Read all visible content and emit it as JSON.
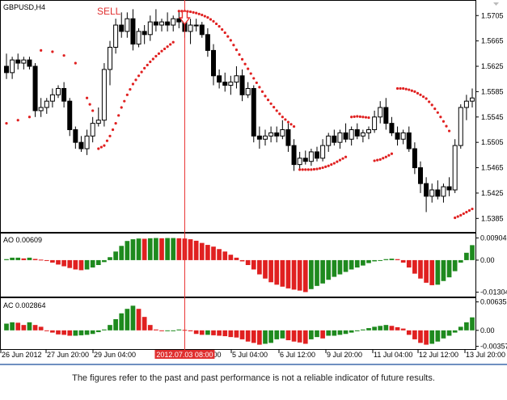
{
  "main_panel": {
    "symbol_label": "GBPUSD,H4",
    "signal_label": "SELL",
    "price_ticks": [
      "1.5705",
      "1.5665",
      "1.5625",
      "1.5585",
      "1.5545",
      "1.5505",
      "1.5465",
      "1.5425",
      "1.5385"
    ]
  },
  "ao_panel": {
    "label": "AO 0.00609",
    "ticks": [
      "0.00904",
      "0.00",
      "-0.01304"
    ]
  },
  "ac_panel": {
    "label": "AC 0.002864",
    "ticks": [
      "0.006351",
      "0.00",
      "-0.00357"
    ]
  },
  "time_axis": {
    "labels": [
      "26 Jun 2012",
      "27 Jun 20:00",
      "29 Jun 04:00",
      "20:00",
      "5 Jul 04:00",
      "6 Jul 12:00",
      "9 Jul 20:00",
      "11 Jul 04:00",
      "12 Jul 12:00",
      "13 Jul 20:00"
    ],
    "highlight_label": "2012.07.03 08:00"
  },
  "disclaimer": "The figures refer to the past and past performance is not a reliable indicator of future results.",
  "colors": {
    "up_bar": "#1e8a1e",
    "down_bar": "#e02020",
    "sar_dot": "#e02020",
    "signal_line": "#e83030",
    "candle": "#000000"
  },
  "chart_data": [
    {
      "type": "candlestick",
      "title": "GBPUSD,H4",
      "y_ticks": [
        1.5705,
        1.5665,
        1.5625,
        1.5585,
        1.5545,
        1.5505,
        1.5465,
        1.5425,
        1.5385
      ],
      "ylim": [
        1.5365,
        1.5727
      ],
      "candles": [
        {
          "o": 1.5625,
          "h": 1.5645,
          "l": 1.5605,
          "c": 1.5615
        },
        {
          "o": 1.5615,
          "h": 1.564,
          "l": 1.5605,
          "c": 1.5635
        },
        {
          "o": 1.5635,
          "h": 1.5645,
          "l": 1.562,
          "c": 1.563
        },
        {
          "o": 1.563,
          "h": 1.564,
          "l": 1.562,
          "c": 1.5635
        },
        {
          "o": 1.5635,
          "h": 1.564,
          "l": 1.562,
          "c": 1.5625
        },
        {
          "o": 1.5625,
          "h": 1.563,
          "l": 1.5545,
          "c": 1.5555
        },
        {
          "o": 1.5555,
          "h": 1.5575,
          "l": 1.5545,
          "c": 1.556
        },
        {
          "o": 1.556,
          "h": 1.5575,
          "l": 1.555,
          "c": 1.557
        },
        {
          "o": 1.557,
          "h": 1.559,
          "l": 1.556,
          "c": 1.558
        },
        {
          "o": 1.558,
          "h": 1.5595,
          "l": 1.5575,
          "c": 1.559
        },
        {
          "o": 1.559,
          "h": 1.56,
          "l": 1.556,
          "c": 1.557
        },
        {
          "o": 1.557,
          "h": 1.5575,
          "l": 1.5515,
          "c": 1.5525
        },
        {
          "o": 1.5525,
          "h": 1.553,
          "l": 1.5495,
          "c": 1.5505
        },
        {
          "o": 1.5505,
          "h": 1.5515,
          "l": 1.549,
          "c": 1.5495
        },
        {
          "o": 1.5495,
          "h": 1.5525,
          "l": 1.5485,
          "c": 1.5515
        },
        {
          "o": 1.5515,
          "h": 1.5545,
          "l": 1.5505,
          "c": 1.5535
        },
        {
          "o": 1.5535,
          "h": 1.556,
          "l": 1.553,
          "c": 1.554
        },
        {
          "o": 1.554,
          "h": 1.563,
          "l": 1.553,
          "c": 1.562
        },
        {
          "o": 1.562,
          "h": 1.5665,
          "l": 1.5595,
          "c": 1.5655
        },
        {
          "o": 1.5655,
          "h": 1.57,
          "l": 1.5645,
          "c": 1.569
        },
        {
          "o": 1.569,
          "h": 1.571,
          "l": 1.567,
          "c": 1.568
        },
        {
          "o": 1.568,
          "h": 1.571,
          "l": 1.567,
          "c": 1.57
        },
        {
          "o": 1.57,
          "h": 1.5715,
          "l": 1.565,
          "c": 1.566
        },
        {
          "o": 1.566,
          "h": 1.5685,
          "l": 1.5655,
          "c": 1.568
        },
        {
          "o": 1.568,
          "h": 1.569,
          "l": 1.566,
          "c": 1.5675
        },
        {
          "o": 1.5675,
          "h": 1.5705,
          "l": 1.5665,
          "c": 1.5695
        },
        {
          "o": 1.5695,
          "h": 1.5715,
          "l": 1.568,
          "c": 1.569
        },
        {
          "o": 1.569,
          "h": 1.57,
          "l": 1.568,
          "c": 1.5695
        },
        {
          "o": 1.5695,
          "h": 1.571,
          "l": 1.568,
          "c": 1.569
        },
        {
          "o": 1.569,
          "h": 1.5705,
          "l": 1.568,
          "c": 1.57
        },
        {
          "o": 1.57,
          "h": 1.5712,
          "l": 1.5685,
          "c": 1.5695
        },
        {
          "o": 1.5695,
          "h": 1.57,
          "l": 1.567,
          "c": 1.568
        },
        {
          "o": 1.568,
          "h": 1.57,
          "l": 1.566,
          "c": 1.569
        },
        {
          "o": 1.569,
          "h": 1.57,
          "l": 1.568,
          "c": 1.569
        },
        {
          "o": 1.569,
          "h": 1.5695,
          "l": 1.567,
          "c": 1.5675
        },
        {
          "o": 1.5675,
          "h": 1.5685,
          "l": 1.564,
          "c": 1.565
        },
        {
          "o": 1.565,
          "h": 1.566,
          "l": 1.5595,
          "c": 1.561
        },
        {
          "o": 1.561,
          "h": 1.562,
          "l": 1.559,
          "c": 1.56
        },
        {
          "o": 1.56,
          "h": 1.5615,
          "l": 1.5585,
          "c": 1.5595
        },
        {
          "o": 1.5595,
          "h": 1.561,
          "l": 1.558,
          "c": 1.56
        },
        {
          "o": 1.56,
          "h": 1.5625,
          "l": 1.559,
          "c": 1.561
        },
        {
          "o": 1.561,
          "h": 1.562,
          "l": 1.557,
          "c": 1.558
        },
        {
          "o": 1.558,
          "h": 1.56,
          "l": 1.5575,
          "c": 1.559
        },
        {
          "o": 1.559,
          "h": 1.5595,
          "l": 1.5505,
          "c": 1.5515
        },
        {
          "o": 1.5515,
          "h": 1.553,
          "l": 1.5495,
          "c": 1.551
        },
        {
          "o": 1.551,
          "h": 1.5525,
          "l": 1.55,
          "c": 1.5515
        },
        {
          "o": 1.5515,
          "h": 1.553,
          "l": 1.5505,
          "c": 1.552
        },
        {
          "o": 1.552,
          "h": 1.553,
          "l": 1.5505,
          "c": 1.5515
        },
        {
          "o": 1.5515,
          "h": 1.554,
          "l": 1.551,
          "c": 1.5525
        },
        {
          "o": 1.5525,
          "h": 1.5535,
          "l": 1.549,
          "c": 1.55
        },
        {
          "o": 1.55,
          "h": 1.551,
          "l": 1.546,
          "c": 1.547
        },
        {
          "o": 1.547,
          "h": 1.549,
          "l": 1.5462,
          "c": 1.548
        },
        {
          "o": 1.548,
          "h": 1.5492,
          "l": 1.547,
          "c": 1.5475
        },
        {
          "o": 1.5475,
          "h": 1.5495,
          "l": 1.5468,
          "c": 1.549
        },
        {
          "o": 1.549,
          "h": 1.5498,
          "l": 1.5475,
          "c": 1.548
        },
        {
          "o": 1.548,
          "h": 1.551,
          "l": 1.5475,
          "c": 1.55
        },
        {
          "o": 1.55,
          "h": 1.552,
          "l": 1.549,
          "c": 1.5515
        },
        {
          "o": 1.5515,
          "h": 1.5525,
          "l": 1.55,
          "c": 1.5505
        },
        {
          "o": 1.5505,
          "h": 1.5525,
          "l": 1.5495,
          "c": 1.552
        },
        {
          "o": 1.552,
          "h": 1.5535,
          "l": 1.5505,
          "c": 1.551
        },
        {
          "o": 1.551,
          "h": 1.553,
          "l": 1.55,
          "c": 1.5525
        },
        {
          "o": 1.5525,
          "h": 1.5535,
          "l": 1.551,
          "c": 1.5515
        },
        {
          "o": 1.5515,
          "h": 1.5525,
          "l": 1.5505,
          "c": 1.552
        },
        {
          "o": 1.552,
          "h": 1.553,
          "l": 1.551,
          "c": 1.5525
        },
        {
          "o": 1.5525,
          "h": 1.5555,
          "l": 1.552,
          "c": 1.5545
        },
        {
          "o": 1.5545,
          "h": 1.557,
          "l": 1.5535,
          "c": 1.556
        },
        {
          "o": 1.556,
          "h": 1.5575,
          "l": 1.5525,
          "c": 1.5535
        },
        {
          "o": 1.5535,
          "h": 1.5545,
          "l": 1.5515,
          "c": 1.552
        },
        {
          "o": 1.552,
          "h": 1.553,
          "l": 1.55,
          "c": 1.551
        },
        {
          "o": 1.551,
          "h": 1.5525,
          "l": 1.5502,
          "c": 1.552
        },
        {
          "o": 1.552,
          "h": 1.553,
          "l": 1.549,
          "c": 1.5495
        },
        {
          "o": 1.5495,
          "h": 1.5505,
          "l": 1.5455,
          "c": 1.5465
        },
        {
          "o": 1.5465,
          "h": 1.5475,
          "l": 1.5425,
          "c": 1.544
        },
        {
          "o": 1.544,
          "h": 1.545,
          "l": 1.5395,
          "c": 1.542
        },
        {
          "o": 1.542,
          "h": 1.544,
          "l": 1.541,
          "c": 1.543
        },
        {
          "o": 1.543,
          "h": 1.5445,
          "l": 1.5415,
          "c": 1.542
        },
        {
          "o": 1.542,
          "h": 1.544,
          "l": 1.541,
          "c": 1.5435
        },
        {
          "o": 1.5435,
          "h": 1.545,
          "l": 1.542,
          "c": 1.543
        },
        {
          "o": 1.543,
          "h": 1.551,
          "l": 1.5425,
          "c": 1.55
        },
        {
          "o": 1.55,
          "h": 1.5565,
          "l": 1.5495,
          "c": 1.556
        },
        {
          "o": 1.556,
          "h": 1.558,
          "l": 1.554,
          "c": 1.557
        },
        {
          "o": 1.557,
          "h": 1.559,
          "l": 1.556,
          "c": 1.5575
        }
      ],
      "sar": [
        {
          "i": 0,
          "v": 1.5535
        },
        {
          "i": 2,
          "v": 1.554
        },
        {
          "i": 4,
          "v": 1.5545
        },
        {
          "i": 6,
          "v": 1.565
        },
        {
          "i": 8,
          "v": 1.5648
        },
        {
          "i": 10,
          "v": 1.5642
        },
        {
          "i": 12,
          "v": 1.563
        },
        {
          "i": 14,
          "v": 1.5575
        },
        {
          "i": 15,
          "v": 1.5555
        },
        {
          "i": 16,
          "v": 1.5495
        },
        {
          "i": 17,
          "v": 1.55
        },
        {
          "i": 18,
          "v": 1.5515
        },
        {
          "i": 19,
          "v": 1.5535
        },
        {
          "i": 20,
          "v": 1.556
        },
        {
          "i": 21,
          "v": 1.558
        },
        {
          "i": 22,
          "v": 1.5597
        },
        {
          "i": 23,
          "v": 1.561
        },
        {
          "i": 24,
          "v": 1.5622
        },
        {
          "i": 25,
          "v": 1.5632
        },
        {
          "i": 26,
          "v": 1.5641
        },
        {
          "i": 27,
          "v": 1.5649
        },
        {
          "i": 28,
          "v": 1.5656
        },
        {
          "i": 29,
          "v": 1.5663
        },
        {
          "i": 30,
          "v": 1.5712
        },
        {
          "i": 31,
          "v": 1.5712
        },
        {
          "i": 32,
          "v": 1.5711
        },
        {
          "i": 33,
          "v": 1.5709
        },
        {
          "i": 34,
          "v": 1.5706
        },
        {
          "i": 35,
          "v": 1.5702
        },
        {
          "i": 36,
          "v": 1.5696
        },
        {
          "i": 37,
          "v": 1.5688
        },
        {
          "i": 38,
          "v": 1.5678
        },
        {
          "i": 39,
          "v": 1.5666
        },
        {
          "i": 40,
          "v": 1.5651
        },
        {
          "i": 41,
          "v": 1.5636
        },
        {
          "i": 42,
          "v": 1.5621
        },
        {
          "i": 43,
          "v": 1.5606
        },
        {
          "i": 44,
          "v": 1.5592
        },
        {
          "i": 45,
          "v": 1.5578
        },
        {
          "i": 46,
          "v": 1.5566
        },
        {
          "i": 47,
          "v": 1.5555
        },
        {
          "i": 48,
          "v": 1.5545
        },
        {
          "i": 49,
          "v": 1.5537
        },
        {
          "i": 50,
          "v": 1.553
        },
        {
          "i": 51,
          "v": 1.5462
        },
        {
          "i": 52,
          "v": 1.5462
        },
        {
          "i": 53,
          "v": 1.5462
        },
        {
          "i": 54,
          "v": 1.5463
        },
        {
          "i": 55,
          "v": 1.5465
        },
        {
          "i": 56,
          "v": 1.5468
        },
        {
          "i": 57,
          "v": 1.5472
        },
        {
          "i": 58,
          "v": 1.5477
        },
        {
          "i": 59,
          "v": 1.5482
        },
        {
          "i": 60,
          "v": 1.5545
        },
        {
          "i": 61,
          "v": 1.5546
        },
        {
          "i": 62,
          "v": 1.5545
        },
        {
          "i": 63,
          "v": 1.5544
        },
        {
          "i": 64,
          "v": 1.5476
        },
        {
          "i": 65,
          "v": 1.5478
        },
        {
          "i": 66,
          "v": 1.5482
        },
        {
          "i": 67,
          "v": 1.5487
        },
        {
          "i": 68,
          "v": 1.559
        },
        {
          "i": 69,
          "v": 1.559
        },
        {
          "i": 70,
          "v": 1.5588
        },
        {
          "i": 71,
          "v": 1.5585
        },
        {
          "i": 72,
          "v": 1.558
        },
        {
          "i": 73,
          "v": 1.5574
        },
        {
          "i": 74,
          "v": 1.5564
        },
        {
          "i": 75,
          "v": 1.5552
        },
        {
          "i": 76,
          "v": 1.5538
        },
        {
          "i": 77,
          "v": 1.5523
        },
        {
          "i": 78,
          "v": 1.5386
        },
        {
          "i": 79,
          "v": 1.539
        },
        {
          "i": 80,
          "v": 1.5395
        },
        {
          "i": 81,
          "v": 1.54
        }
      ],
      "signal_index": 31
    },
    {
      "type": "bar",
      "title": "AO 0.00609",
      "y_ticks": [
        0.00904,
        0.0,
        -0.01304
      ],
      "ylim": [
        -0.0145,
        0.0105
      ],
      "values": [
        0.0004,
        0.001,
        0.001,
        0.0007,
        0.001,
        0.0005,
        0.0002,
        -0.0003,
        -0.001,
        -0.0018,
        -0.0025,
        -0.0032,
        -0.0038,
        -0.0041,
        -0.0038,
        -0.003,
        -0.002,
        -0.0008,
        0.0012,
        0.0035,
        0.0058,
        0.0078,
        0.0085,
        0.0088,
        0.0087,
        0.0089,
        0.009,
        0.0089,
        0.009,
        0.009,
        0.0089,
        0.0088,
        0.0085,
        0.0079,
        0.007,
        0.0062,
        0.0055,
        0.0045,
        0.0035,
        0.0022,
        0.001,
        -0.0005,
        -0.002,
        -0.0038,
        -0.0058,
        -0.0075,
        -0.009,
        -0.01,
        -0.0108,
        -0.0115,
        -0.012,
        -0.0124,
        -0.013,
        -0.0118,
        -0.0105,
        -0.0095,
        -0.008,
        -0.0068,
        -0.0058,
        -0.0048,
        -0.0038,
        -0.003,
        -0.0022,
        -0.0012,
        -0.0005,
        -0.0002,
        0.0004,
        0.0006,
        0.0004,
        -0.001,
        -0.003,
        -0.0055,
        -0.0075,
        -0.0092,
        -0.0102,
        -0.01,
        -0.0085,
        -0.007,
        -0.0045,
        -0.001,
        0.003,
        0.0061
      ]
    },
    {
      "type": "bar",
      "title": "AC 0.002864",
      "y_ticks": [
        0.006351,
        0.0,
        -0.00357
      ],
      "ylim": [
        -0.004,
        0.007
      ],
      "values": [
        0.0015,
        0.0018,
        0.0017,
        0.0012,
        0.0018,
        0.0012,
        0.0008,
        0.0,
        -0.0005,
        -0.0009,
        -0.001,
        -0.0012,
        -0.0012,
        -0.0011,
        -0.001,
        -0.0008,
        -0.0004,
        0.0002,
        0.0012,
        0.0025,
        0.0038,
        0.0048,
        0.0055,
        0.0048,
        0.003,
        0.0012,
        0.0002,
        0.0,
        0.0,
        0.0,
        0.0002,
        0.0001,
        -0.0002,
        -0.0008,
        -0.001,
        -0.001,
        -0.0011,
        -0.0012,
        -0.0013,
        -0.0015,
        -0.0016,
        -0.002,
        -0.0025,
        -0.0028,
        -0.0032,
        -0.003,
        -0.0028,
        -0.002,
        -0.0018,
        -0.0022,
        -0.0025,
        -0.0027,
        -0.003,
        -0.002,
        -0.0015,
        -0.0018,
        -0.0012,
        -0.0012,
        -0.001,
        -0.0008,
        -0.0005,
        -0.0002,
        0.0002,
        0.0005,
        0.0008,
        0.001,
        0.0012,
        0.001,
        0.0007,
        0.0004,
        -0.001,
        -0.002,
        -0.0028,
        -0.0032,
        -0.003,
        -0.0025,
        -0.0018,
        -0.0012,
        -0.0005,
        0.0008,
        0.0018,
        0.0029
      ]
    }
  ]
}
